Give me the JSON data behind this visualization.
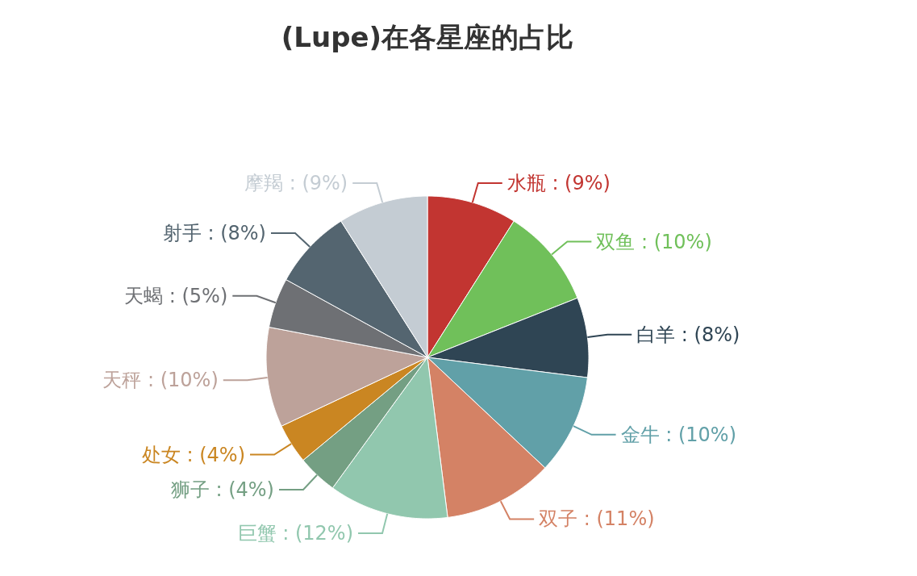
{
  "chart_data": {
    "type": "pie",
    "title": "(Lupe)在各星座的占比",
    "categories": [
      "水瓶",
      "双鱼",
      "白羊",
      "金牛",
      "双子",
      "巨蟹",
      "狮子",
      "处女",
      "天秤",
      "天蝎",
      "射手",
      "摩羯"
    ],
    "values": [
      9,
      10,
      8,
      10,
      11,
      12,
      4,
      4,
      10,
      5,
      8,
      9
    ],
    "value_labels": [
      "(9%)",
      "(10%)",
      "(8%)",
      "(10%)",
      "(11%)",
      "(12%)",
      "(4%)",
      "(4%)",
      "(10%)",
      "(5%)",
      "(8%)",
      "(9%)"
    ],
    "colors": [
      "#c23531",
      "#70c05a",
      "#2f4554",
      "#61a0a8",
      "#d48265",
      "#91c7ae",
      "#749f83",
      "#ca8622",
      "#bda29a",
      "#6e7074",
      "#546570",
      "#c4ccd3"
    ]
  }
}
